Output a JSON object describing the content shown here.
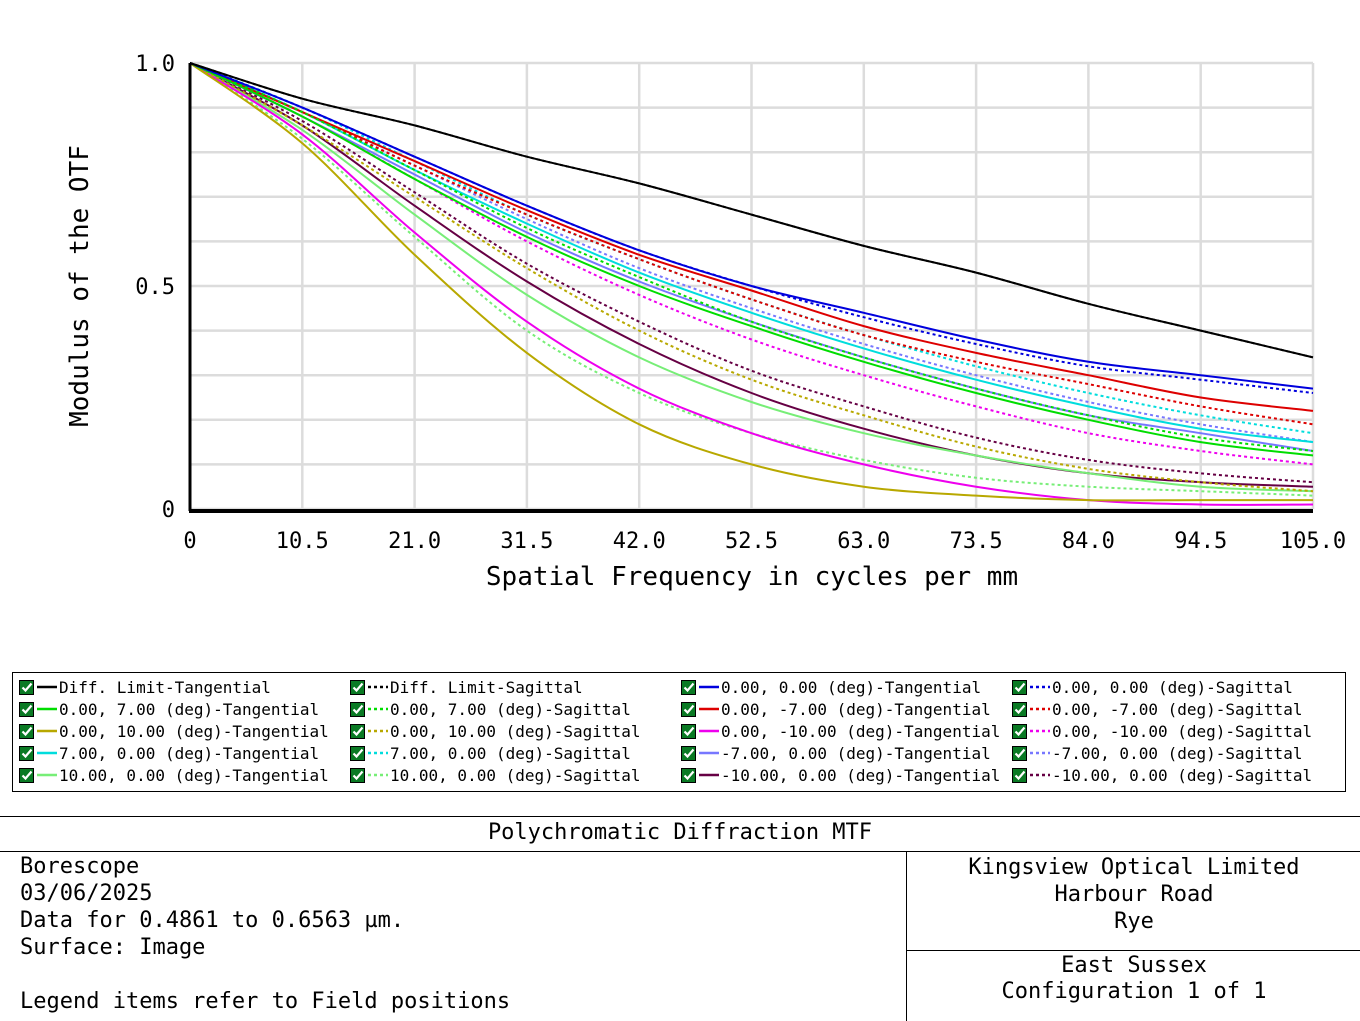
{
  "chart_data": {
    "type": "line",
    "xlabel": "Spatial Frequency in cycles per mm",
    "ylabel": "Modulus of the OTF",
    "xlim": [
      0,
      105
    ],
    "ylim": [
      0,
      1
    ],
    "x_ticks": [
      "0",
      "10.5",
      "21.0",
      "31.5",
      "42.0",
      "52.5",
      "63.0",
      "73.5",
      "84.0",
      "94.5",
      "105.0"
    ],
    "y_ticks": [
      "0",
      "0.5",
      "1.0"
    ],
    "grid": true,
    "legend_position": "bottom",
    "series": [
      {
        "name": "Diff. Limit-Tangential",
        "color": "#000000",
        "style": "solid",
        "x": [
          0,
          10.5,
          21,
          31.5,
          42,
          52.5,
          63,
          73.5,
          84,
          94.5,
          105
        ],
        "y": [
          1.0,
          0.92,
          0.86,
          0.79,
          0.73,
          0.66,
          0.59,
          0.53,
          0.46,
          0.4,
          0.34
        ]
      },
      {
        "name": "Diff. Limit-Sagittal",
        "color": "#000000",
        "style": "dotted",
        "x": [
          0,
          10.5,
          21,
          31.5,
          42,
          52.5,
          63,
          73.5,
          84,
          94.5,
          105
        ],
        "y": [
          1.0,
          0.92,
          0.86,
          0.79,
          0.73,
          0.66,
          0.59,
          0.53,
          0.46,
          0.4,
          0.34
        ]
      },
      {
        "name": "0.00, 0.00 (deg)-Tangential",
        "color": "#0000dd",
        "style": "solid",
        "x": [
          0,
          10.5,
          21,
          31.5,
          42,
          52.5,
          63,
          73.5,
          84,
          94.5,
          105
        ],
        "y": [
          1.0,
          0.9,
          0.79,
          0.68,
          0.58,
          0.5,
          0.44,
          0.38,
          0.33,
          0.3,
          0.27
        ]
      },
      {
        "name": "0.00, 0.00 (deg)-Sagittal",
        "color": "#0000dd",
        "style": "dotted",
        "x": [
          0,
          10.5,
          21,
          31.5,
          42,
          52.5,
          63,
          73.5,
          84,
          94.5,
          105
        ],
        "y": [
          1.0,
          0.9,
          0.79,
          0.68,
          0.58,
          0.5,
          0.43,
          0.37,
          0.32,
          0.29,
          0.26
        ]
      },
      {
        "name": "0.00, 7.00 (deg)-Tangential",
        "color": "#00dd00",
        "style": "solid",
        "x": [
          0,
          10.5,
          21,
          31.5,
          42,
          52.5,
          63,
          73.5,
          84,
          94.5,
          105
        ],
        "y": [
          1.0,
          0.88,
          0.74,
          0.61,
          0.5,
          0.41,
          0.33,
          0.26,
          0.2,
          0.15,
          0.12
        ]
      },
      {
        "name": "0.00, 7.00 (deg)-Sagittal",
        "color": "#00dd00",
        "style": "dotted",
        "x": [
          0,
          10.5,
          21,
          31.5,
          42,
          52.5,
          63,
          73.5,
          84,
          94.5,
          105
        ],
        "y": [
          1.0,
          0.89,
          0.76,
          0.63,
          0.52,
          0.42,
          0.34,
          0.27,
          0.21,
          0.16,
          0.13
        ]
      },
      {
        "name": "0.00, -7.00 (deg)-Tangential",
        "color": "#dd0000",
        "style": "solid",
        "x": [
          0,
          10.5,
          21,
          31.5,
          42,
          52.5,
          63,
          73.5,
          84,
          94.5,
          105
        ],
        "y": [
          1.0,
          0.89,
          0.78,
          0.67,
          0.57,
          0.49,
          0.41,
          0.35,
          0.3,
          0.25,
          0.22
        ]
      },
      {
        "name": "0.00, -7.00 (deg)-Sagittal",
        "color": "#dd0000",
        "style": "dotted",
        "x": [
          0,
          10.5,
          21,
          31.5,
          42,
          52.5,
          63,
          73.5,
          84,
          94.5,
          105
        ],
        "y": [
          1.0,
          0.89,
          0.77,
          0.66,
          0.56,
          0.47,
          0.39,
          0.33,
          0.28,
          0.23,
          0.19
        ]
      },
      {
        "name": "0.00, 10.00 (deg)-Tangential",
        "color": "#b8a800",
        "style": "solid",
        "x": [
          0,
          10.5,
          21,
          31.5,
          42,
          52.5,
          63,
          73.5,
          84,
          94.5,
          105
        ],
        "y": [
          1.0,
          0.82,
          0.57,
          0.35,
          0.19,
          0.1,
          0.05,
          0.03,
          0.02,
          0.02,
          0.02
        ]
      },
      {
        "name": "0.00, 10.00 (deg)-Sagittal",
        "color": "#b8a800",
        "style": "dotted",
        "x": [
          0,
          10.5,
          21,
          31.5,
          42,
          52.5,
          63,
          73.5,
          84,
          94.5,
          105
        ],
        "y": [
          1.0,
          0.86,
          0.7,
          0.54,
          0.4,
          0.29,
          0.21,
          0.14,
          0.09,
          0.06,
          0.04
        ]
      },
      {
        "name": "0.00, -10.00 (deg)-Tangential",
        "color": "#ee00ee",
        "style": "solid",
        "x": [
          0,
          10.5,
          21,
          31.5,
          42,
          52.5,
          63,
          73.5,
          84,
          94.5,
          105
        ],
        "y": [
          1.0,
          0.84,
          0.62,
          0.42,
          0.27,
          0.17,
          0.1,
          0.05,
          0.02,
          0.01,
          0.01
        ]
      },
      {
        "name": "0.00, -10.00 (deg)-Sagittal",
        "color": "#ee00ee",
        "style": "dotted",
        "x": [
          0,
          10.5,
          21,
          31.5,
          42,
          52.5,
          63,
          73.5,
          84,
          94.5,
          105
        ],
        "y": [
          1.0,
          0.88,
          0.74,
          0.6,
          0.48,
          0.38,
          0.3,
          0.23,
          0.17,
          0.13,
          0.1
        ]
      },
      {
        "name": "7.00, 0.00 (deg)-Tangential",
        "color": "#00dddd",
        "style": "solid",
        "x": [
          0,
          10.5,
          21,
          31.5,
          42,
          52.5,
          63,
          73.5,
          84,
          94.5,
          105
        ],
        "y": [
          1.0,
          0.89,
          0.76,
          0.64,
          0.53,
          0.44,
          0.36,
          0.29,
          0.23,
          0.18,
          0.15
        ]
      },
      {
        "name": "7.00, 0.00 (deg)-Sagittal",
        "color": "#00dddd",
        "style": "dotted",
        "x": [
          0,
          10.5,
          21,
          31.5,
          42,
          52.5,
          63,
          73.5,
          84,
          94.5,
          105
        ],
        "y": [
          1.0,
          0.9,
          0.78,
          0.66,
          0.56,
          0.47,
          0.39,
          0.32,
          0.26,
          0.21,
          0.17
        ]
      },
      {
        "name": "-7.00, 0.00 (deg)-Tangential",
        "color": "#7777ff",
        "style": "solid",
        "x": [
          0,
          10.5,
          21,
          31.5,
          42,
          52.5,
          63,
          73.5,
          84,
          94.5,
          105
        ],
        "y": [
          1.0,
          0.88,
          0.75,
          0.62,
          0.51,
          0.42,
          0.34,
          0.27,
          0.21,
          0.17,
          0.13
        ]
      },
      {
        "name": "-7.00, 0.00 (deg)-Sagittal",
        "color": "#7777ff",
        "style": "dotted",
        "x": [
          0,
          10.5,
          21,
          31.5,
          42,
          52.5,
          63,
          73.5,
          84,
          94.5,
          105
        ],
        "y": [
          1.0,
          0.89,
          0.77,
          0.65,
          0.54,
          0.45,
          0.37,
          0.3,
          0.24,
          0.19,
          0.15
        ]
      },
      {
        "name": "10.00, 0.00 (deg)-Tangential",
        "color": "#77ee77",
        "style": "solid",
        "x": [
          0,
          10.5,
          21,
          31.5,
          42,
          52.5,
          63,
          73.5,
          84,
          94.5,
          105
        ],
        "y": [
          1.0,
          0.85,
          0.66,
          0.48,
          0.34,
          0.24,
          0.17,
          0.12,
          0.08,
          0.05,
          0.04
        ]
      },
      {
        "name": "10.00, 0.00 (deg)-Sagittal",
        "color": "#77ee77",
        "style": "dotted",
        "x": [
          0,
          10.5,
          21,
          31.5,
          42,
          52.5,
          63,
          73.5,
          84,
          94.5,
          105
        ],
        "y": [
          1.0,
          0.83,
          0.61,
          0.4,
          0.26,
          0.17,
          0.11,
          0.07,
          0.05,
          0.04,
          0.03
        ]
      },
      {
        "name": "-10.00, 0.00 (deg)-Tangential",
        "color": "#660044",
        "style": "solid",
        "x": [
          0,
          10.5,
          21,
          31.5,
          42,
          52.5,
          63,
          73.5,
          84,
          94.5,
          105
        ],
        "y": [
          1.0,
          0.86,
          0.68,
          0.51,
          0.37,
          0.26,
          0.18,
          0.12,
          0.08,
          0.06,
          0.05
        ]
      },
      {
        "name": "-10.00, 0.00 (deg)-Sagittal",
        "color": "#660044",
        "style": "dotted",
        "x": [
          0,
          10.5,
          21,
          31.5,
          42,
          52.5,
          63,
          73.5,
          84,
          94.5,
          105
        ],
        "y": [
          1.0,
          0.87,
          0.71,
          0.55,
          0.42,
          0.31,
          0.23,
          0.16,
          0.11,
          0.08,
          0.06
        ]
      }
    ]
  },
  "title_block": {
    "title": "Polychromatic Diffraction MTF",
    "left_lines": [
      "Borescope",
      "03/06/2025",
      "Data for 0.4861 to 0.6563 µm.",
      "Surface: Image",
      "",
      "Legend items refer to Field positions"
    ],
    "company_lines": [
      "Kingsview Optical Limited",
      "Harbour Road",
      "Rye"
    ],
    "lower_lines": [
      "East Sussex",
      "Configuration 1 of 1"
    ]
  }
}
